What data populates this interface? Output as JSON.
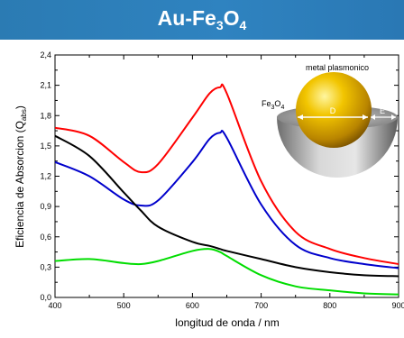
{
  "banner": {
    "title_main": "Au-Fe",
    "title_sub_1": "3",
    "title_o": "O",
    "title_sub_2": "4"
  },
  "chart_data": {
    "type": "line",
    "xlabel": "longitud de onda / nm",
    "ylabel_main": "Eficiencia de Absorcion (Q",
    "ylabel_sub": "abs",
    "ylabel_end": ")",
    "xlim": [
      400,
      900
    ],
    "ylim": [
      0.0,
      2.4
    ],
    "xticks": [
      400,
      500,
      600,
      700,
      800,
      900
    ],
    "yticks": [
      "0,0",
      "0,3",
      "0,6",
      "0,9",
      "1,2",
      "1,5",
      "1,8",
      "2,1",
      "2,4"
    ],
    "grid": false,
    "x": [
      400,
      450,
      500,
      525,
      550,
      600,
      625,
      640,
      650,
      700,
      750,
      800,
      850,
      900
    ],
    "series": [
      {
        "color": "#ff0000",
        "values": [
          1.68,
          1.6,
          1.34,
          1.24,
          1.32,
          1.78,
          2.02,
          2.08,
          2.02,
          1.15,
          0.65,
          0.48,
          0.39,
          0.33
        ]
      },
      {
        "color": "#0000cc",
        "values": [
          1.34,
          1.2,
          0.97,
          0.91,
          0.96,
          1.34,
          1.57,
          1.63,
          1.58,
          0.92,
          0.52,
          0.39,
          0.33,
          0.29
        ]
      },
      {
        "color": "#000000",
        "values": [
          1.6,
          1.4,
          1.04,
          0.86,
          0.7,
          0.55,
          0.51,
          0.48,
          0.46,
          0.38,
          0.3,
          0.25,
          0.22,
          0.21
        ]
      },
      {
        "color": "#00dd00",
        "values": [
          0.36,
          0.38,
          0.34,
          0.33,
          0.36,
          0.46,
          0.48,
          0.45,
          0.41,
          0.22,
          0.11,
          0.07,
          0.04,
          0.03
        ]
      }
    ],
    "inset": {
      "label_top": "metal plasmonico",
      "label_shell_main": "Fe",
      "label_shell_sub1": "3",
      "label_shell_o": "O",
      "label_shell_sub2": "4",
      "label_d": "D",
      "label_e": "E"
    }
  }
}
